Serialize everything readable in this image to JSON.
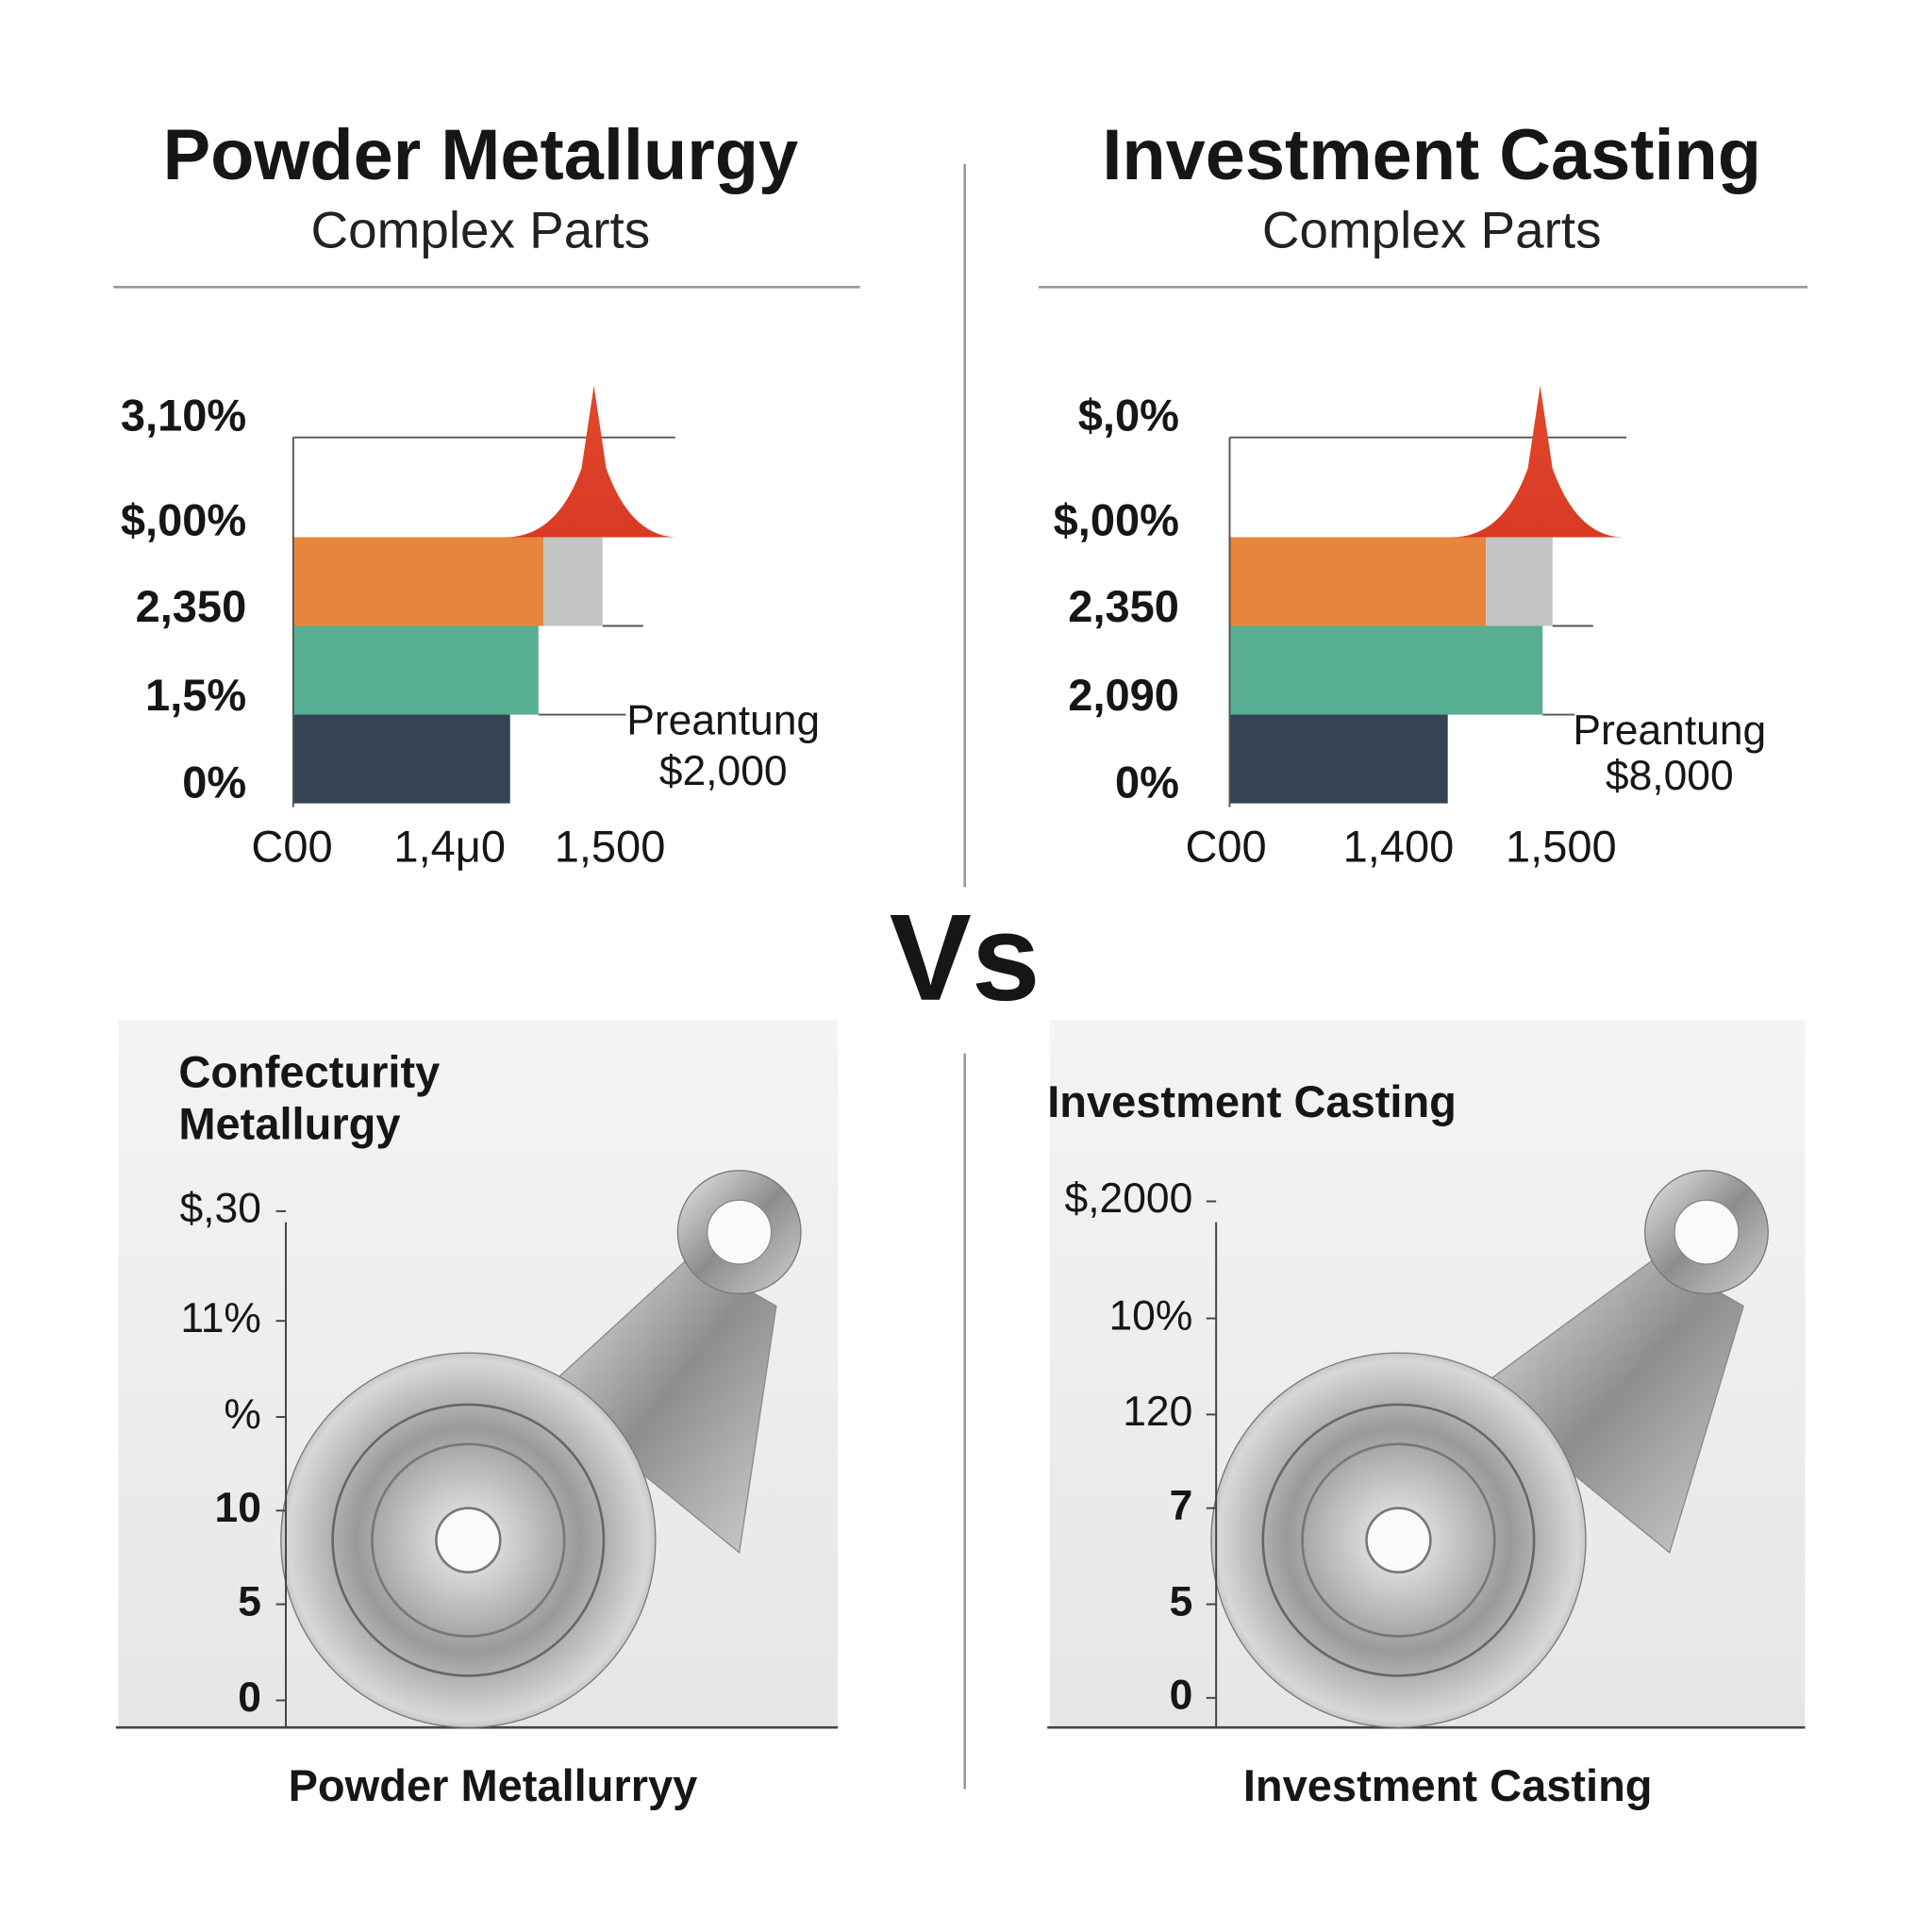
{
  "vs": "Vs",
  "panels": [
    {
      "title": "Powder Metallurgy",
      "subtitle": "Complex Parts",
      "chart": {
        "y_labels": [
          "3,10%",
          "$,00%",
          "2,350",
          "1,5%",
          "0%"
        ],
        "x_labels": [
          "C00",
          "1,4μ0",
          "1,500"
        ],
        "annotation": [
          "Preantung",
          "$2,000"
        ]
      },
      "bottom": {
        "title": [
          "Confecturity",
          "Metallurgy"
        ],
        "y_labels": [
          "$,30",
          "11%",
          "%",
          "10",
          "5",
          "0"
        ],
        "caption": "Powder Metallurryy"
      }
    },
    {
      "title": "Investment Casting",
      "subtitle": "Complex Parts",
      "chart": {
        "y_labels": [
          "$,0%",
          "$,00%",
          "2,350",
          "2,090",
          "0%"
        ],
        "x_labels": [
          "C00",
          "1,400",
          "1,500"
        ],
        "annotation": [
          "Preantung",
          "$8,000"
        ]
      },
      "bottom": {
        "title": [
          "Investment Casting"
        ],
        "y_labels": [
          "$,2000",
          "10%",
          "120",
          "7",
          "5",
          "0"
        ],
        "caption": "Investment Casting"
      }
    }
  ]
}
